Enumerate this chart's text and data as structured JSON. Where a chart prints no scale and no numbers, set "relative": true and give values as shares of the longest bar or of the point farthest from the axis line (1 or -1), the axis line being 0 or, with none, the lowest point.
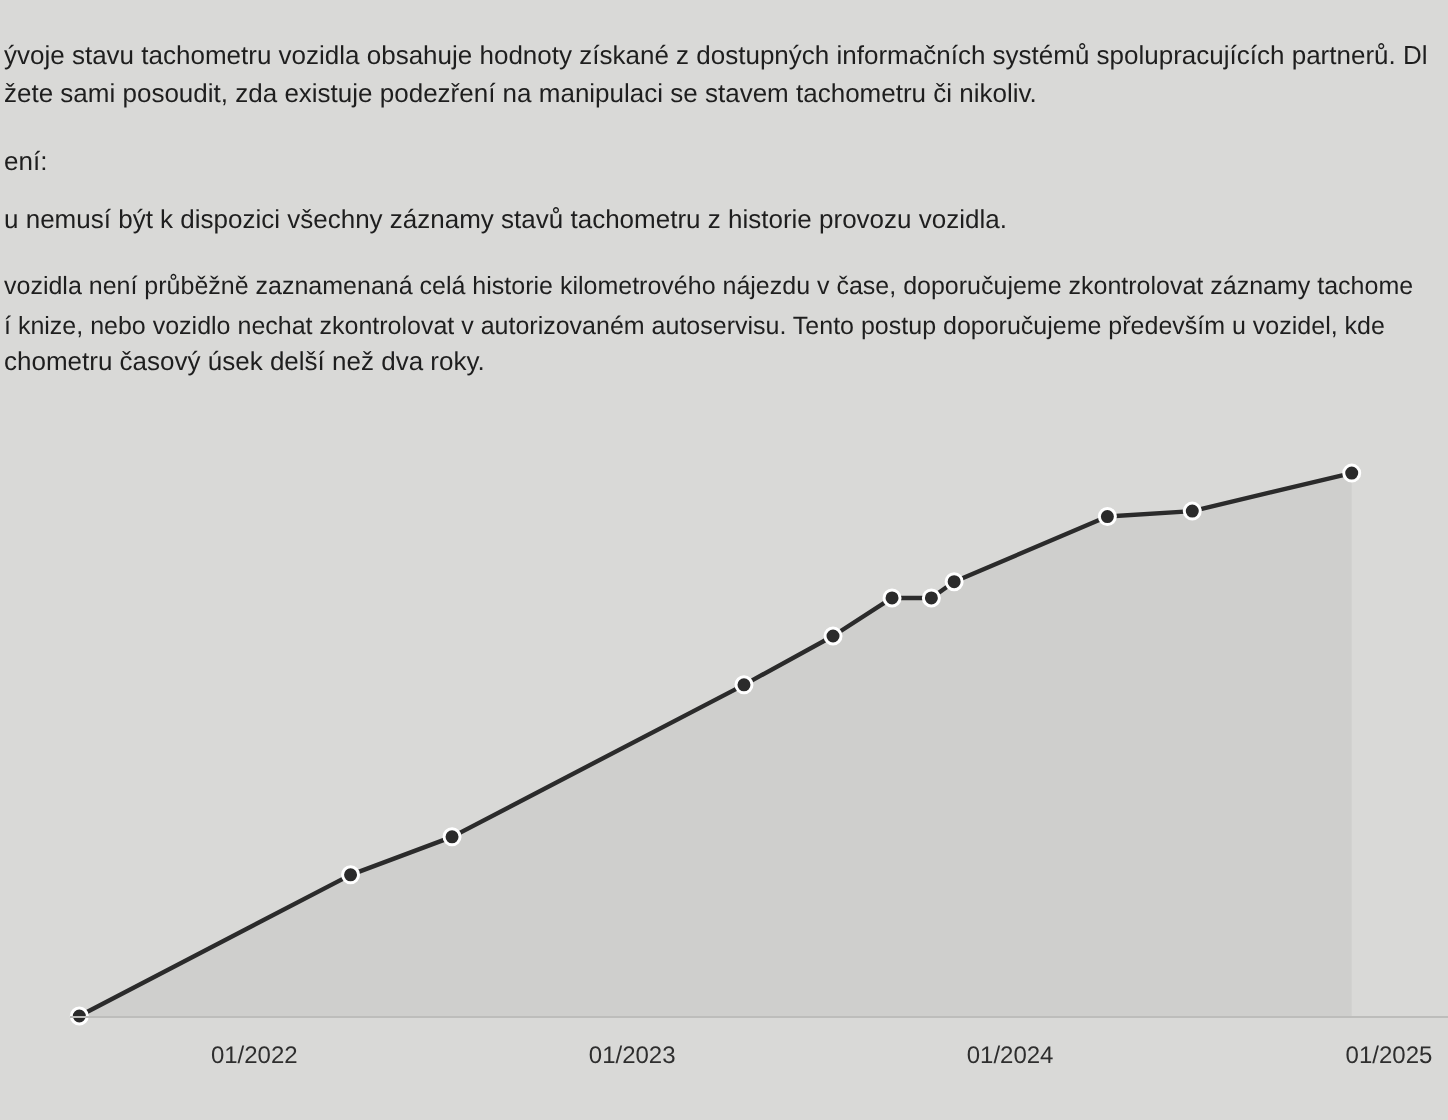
{
  "chart_data": {
    "type": "area",
    "annotations": [
      "ývoje stavu tachometru vozidla obsahuje hodnoty získané z dostupných informačních systémů spolupracujících partnerů. Dl",
      "žete sami posoudit, zda existuje podezření na manipulaci se stavem tachometru či nikoliv.",
      "ení:",
      "u nemusí být k dispozici všechny záznamy stavů tachometru z historie provozu vozidla.",
      "vozidla není průběžně zaznamenaná celá historie kilometrového nájezdu v čase, doporučujeme zkontrolovat záznamy tachome",
      "í knize, nebo vozidlo nechat zkontrolovat v autorizovaném autoservisu. Tento postup doporučujeme především u vozidel, kde",
      "chometru časový úsek delší než dva roky."
    ],
    "x": [
      "2021-07-16",
      "2022-04-04",
      "2022-07-11",
      "2023-04-19",
      "2023-07-14",
      "2023-09-09",
      "2023-10-17",
      "2023-11-08",
      "2024-04-04",
      "2024-06-25",
      "2024-11-26"
    ],
    "values": [
      0,
      0.26,
      0.33,
      0.61,
      0.7,
      0.77,
      0.77,
      0.8,
      0.92,
      0.93,
      1
    ],
    "color": "#2b2b2b",
    "relative": true,
    "xlim": [
      "2021-07-07",
      "2025-02-27"
    ],
    "xticks": [
      {
        "value": "2022-01",
        "label": "01/2022"
      },
      {
        "value": "2023-01",
        "label": "01/2023"
      },
      {
        "value": "2024-01",
        "label": "01/2024"
      },
      {
        "value": "2025-01",
        "label": "01/2025"
      }
    ],
    "marker": "circle"
  }
}
